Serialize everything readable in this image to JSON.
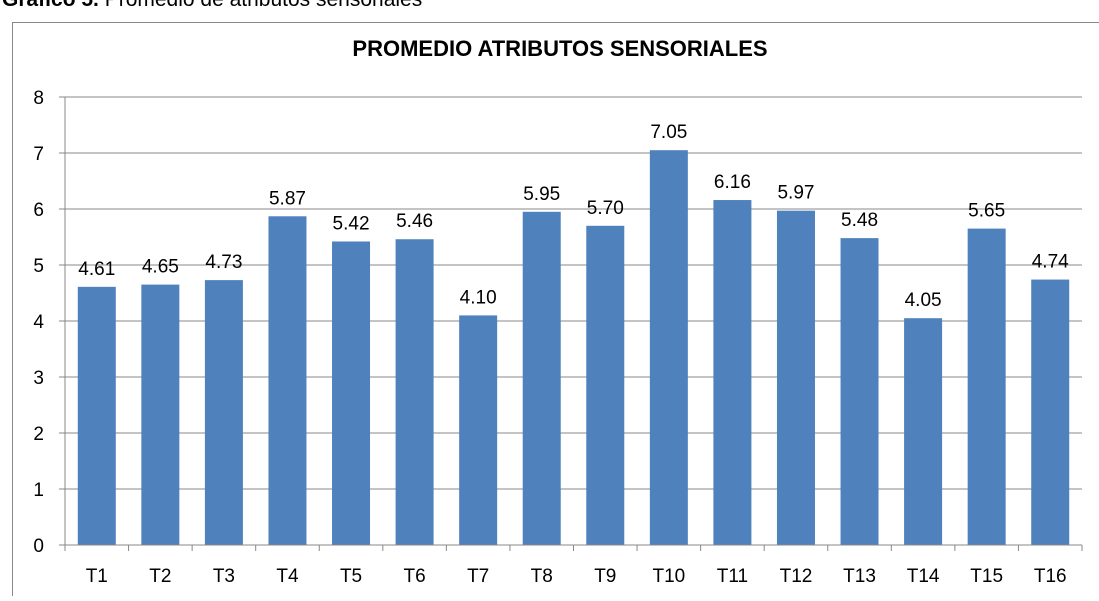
{
  "caption": {
    "label": "Gráfico 5.",
    "text": " Promedio de atributos sensoriales"
  },
  "chart_data": {
    "type": "bar",
    "title": "PROMEDIO ATRIBUTOS SENSORIALES",
    "categories": [
      "T1",
      "T2",
      "T3",
      "T4",
      "T5",
      "T6",
      "T7",
      "T8",
      "T9",
      "T10",
      "T11",
      "T12",
      "T13",
      "T14",
      "T15",
      "T16"
    ],
    "values": [
      4.61,
      4.65,
      4.73,
      5.87,
      5.42,
      5.46,
      4.1,
      5.95,
      5.7,
      7.05,
      6.16,
      5.97,
      5.48,
      4.05,
      5.65,
      4.74
    ],
    "value_labels": [
      "4.61",
      "4.65",
      "4.73",
      "5.87",
      "5.42",
      "5.46",
      "4.10",
      "5.95",
      "5.70",
      "7.05",
      "6.16",
      "5.97",
      "5.48",
      "4.05",
      "5.65",
      "4.74"
    ],
    "color": "#4f81bd",
    "ylim": [
      0,
      8
    ],
    "yticks": [
      0,
      1,
      2,
      3,
      4,
      5,
      6,
      7,
      8
    ],
    "grid": true
  }
}
